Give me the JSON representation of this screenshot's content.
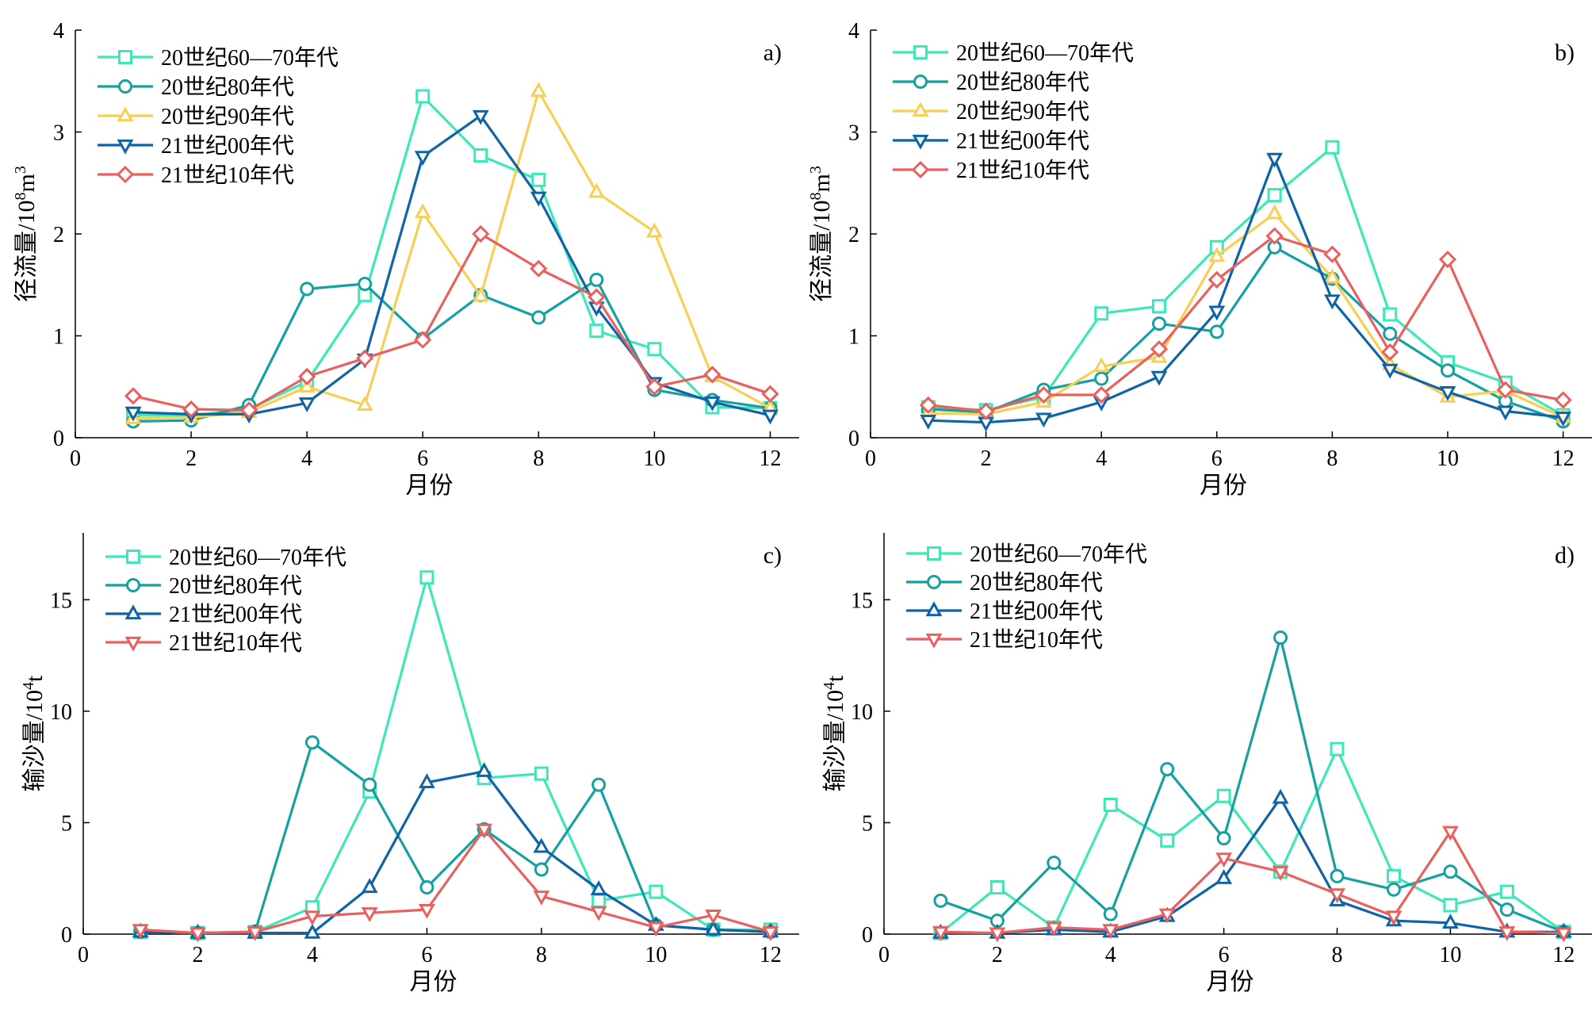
{
  "chart_data": [
    {
      "type": "line",
      "panel_label": "a)",
      "xlabel": "月份",
      "ylabel": "径流量/10⁸m³",
      "xlim": [
        0,
        12.5
      ],
      "ylim": [
        0,
        4
      ],
      "xticks": [
        "0",
        "2",
        "4",
        "6",
        "8",
        "10",
        "12"
      ],
      "yticks": [
        "0",
        "1",
        "2",
        "3",
        "4"
      ],
      "legend_position": "top-left",
      "x": [
        1,
        2,
        3,
        4,
        5,
        6,
        7,
        8,
        9,
        10,
        11,
        12
      ],
      "series": [
        {
          "name": "20世纪60—70年代",
          "marker": "square",
          "color": "#3de8b8",
          "values": [
            0.22,
            0.22,
            0.28,
            0.55,
            1.4,
            3.35,
            2.77,
            2.53,
            1.05,
            0.87,
            0.3,
            0.29
          ]
        },
        {
          "name": "20世纪80年代",
          "marker": "circle",
          "color": "#17a0a0",
          "values": [
            0.16,
            0.17,
            0.32,
            1.46,
            1.51,
            0.97,
            1.4,
            1.18,
            1.55,
            0.47,
            0.37,
            0.29
          ]
        },
        {
          "name": "20世纪90年代",
          "marker": "triangle-up",
          "color": "#f7cf55",
          "values": [
            0.19,
            0.2,
            0.25,
            0.5,
            0.32,
            2.21,
            1.39,
            3.4,
            2.41,
            2.02,
            0.6,
            0.29
          ]
        },
        {
          "name": "21世纪00年代",
          "marker": "triangle-down",
          "color": "#0f64a6",
          "values": [
            0.25,
            0.23,
            0.23,
            0.34,
            0.77,
            2.76,
            3.16,
            2.36,
            1.28,
            0.54,
            0.35,
            0.22
          ]
        },
        {
          "name": "21世纪10年代",
          "marker": "diamond",
          "color": "#e8615f",
          "values": [
            0.41,
            0.28,
            0.27,
            0.6,
            0.78,
            0.96,
            2.0,
            1.66,
            1.38,
            0.5,
            0.62,
            0.43
          ]
        }
      ]
    },
    {
      "type": "line",
      "panel_label": "b)",
      "xlabel": "月份",
      "ylabel": "径流量/10⁸m³",
      "xlim": [
        0,
        12.5
      ],
      "ylim": [
        0,
        4
      ],
      "xticks": [
        "0",
        "2",
        "4",
        "6",
        "8",
        "10",
        "12"
      ],
      "yticks": [
        "0",
        "1",
        "2",
        "3",
        "4"
      ],
      "legend_position": "top-left",
      "x": [
        1,
        2,
        3,
        4,
        5,
        6,
        7,
        8,
        9,
        10,
        11,
        12
      ],
      "series": [
        {
          "name": "20世纪60—70年代",
          "marker": "square",
          "color": "#3de8b8",
          "values": [
            0.3,
            0.27,
            0.4,
            1.22,
            1.29,
            1.87,
            2.38,
            2.85,
            1.21,
            0.74,
            0.54,
            0.22
          ]
        },
        {
          "name": "20世纪80年代",
          "marker": "circle",
          "color": "#17a0a0",
          "values": [
            0.28,
            0.25,
            0.47,
            0.58,
            1.12,
            1.04,
            1.87,
            1.56,
            1.02,
            0.66,
            0.36,
            0.16
          ]
        },
        {
          "name": "20世纪90年代",
          "marker": "triangle-up",
          "color": "#f7cf55",
          "values": [
            0.24,
            0.23,
            0.35,
            0.7,
            0.79,
            1.78,
            2.2,
            1.57,
            0.72,
            0.4,
            0.46,
            0.2
          ]
        },
        {
          "name": "21世纪00年代",
          "marker": "triangle-down",
          "color": "#0f64a6",
          "values": [
            0.17,
            0.15,
            0.19,
            0.35,
            0.6,
            1.24,
            2.74,
            1.35,
            0.67,
            0.45,
            0.26,
            0.2
          ]
        },
        {
          "name": "21世纪10年代",
          "marker": "diamond",
          "color": "#e8615f",
          "values": [
            0.32,
            0.26,
            0.42,
            0.42,
            0.87,
            1.55,
            1.98,
            1.8,
            0.84,
            1.75,
            0.47,
            0.37
          ]
        }
      ]
    },
    {
      "type": "line",
      "panel_label": "c)",
      "xlabel": "月份",
      "ylabel": "输沙量/10⁴t",
      "xlim": [
        0,
        12.5
      ],
      "ylim": [
        0,
        18
      ],
      "xticks": [
        "0",
        "2",
        "4",
        "6",
        "8",
        "10",
        "12"
      ],
      "yticks": [
        "0",
        "5",
        "10",
        "15"
      ],
      "legend_position": "top-left",
      "x": [
        1,
        2,
        3,
        4,
        5,
        6,
        7,
        8,
        9,
        10,
        11,
        12
      ],
      "series": [
        {
          "name": "20世纪60—70年代",
          "marker": "square",
          "color": "#3de8b8",
          "values": [
            0.1,
            0.05,
            0.1,
            1.2,
            6.4,
            16.0,
            7.0,
            7.2,
            1.5,
            1.9,
            0.2,
            0.2
          ]
        },
        {
          "name": "20世纪80年代",
          "marker": "circle",
          "color": "#17a0a0",
          "values": [
            0.1,
            0.05,
            0.1,
            8.6,
            6.7,
            2.1,
            4.7,
            2.9,
            6.7,
            0.4,
            0.2,
            0.1
          ]
        },
        {
          "name": "21世纪00年代",
          "marker": "triangle-up",
          "color": "#0f64a6",
          "values": [
            0.1,
            0.05,
            0.05,
            0.05,
            2.1,
            6.8,
            7.3,
            3.9,
            2.0,
            0.4,
            0.2,
            0.1
          ]
        },
        {
          "name": "21世纪10年代",
          "marker": "triangle-down",
          "color": "#e8615f",
          "values": [
            0.2,
            0.05,
            0.1,
            0.8,
            0.95,
            1.1,
            4.7,
            1.7,
            1.0,
            0.3,
            0.85,
            0.1
          ]
        }
      ]
    },
    {
      "type": "line",
      "panel_label": "d)",
      "xlabel": "月份",
      "ylabel": "输沙量/10⁴t",
      "xlim": [
        0,
        12.5
      ],
      "ylim": [
        0,
        18
      ],
      "xticks": [
        "0",
        "2",
        "4",
        "6",
        "8",
        "10",
        "12"
      ],
      "yticks": [
        "0",
        "5",
        "10",
        "15"
      ],
      "legend_position": "top-left",
      "x": [
        1,
        2,
        3,
        4,
        5,
        6,
        7,
        8,
        9,
        10,
        11,
        12
      ],
      "series": [
        {
          "name": "20世纪60—70年代",
          "marker": "square",
          "color": "#3de8b8",
          "values": [
            0.05,
            2.1,
            0.3,
            5.8,
            4.2,
            6.2,
            2.8,
            8.3,
            2.6,
            1.3,
            1.9,
            0.1
          ]
        },
        {
          "name": "20世纪80年代",
          "marker": "circle",
          "color": "#17a0a0",
          "values": [
            1.5,
            0.6,
            3.2,
            0.9,
            7.4,
            4.3,
            13.3,
            2.6,
            2.0,
            2.8,
            1.1,
            0.1
          ]
        },
        {
          "name": "21世纪00年代",
          "marker": "triangle-up",
          "color": "#0f64a6",
          "values": [
            0.05,
            0.05,
            0.2,
            0.1,
            0.8,
            2.5,
            6.1,
            1.5,
            0.6,
            0.5,
            0.1,
            0.1
          ]
        },
        {
          "name": "21世纪10年代",
          "marker": "triangle-down",
          "color": "#e8615f",
          "values": [
            0.1,
            0.05,
            0.3,
            0.2,
            0.9,
            3.4,
            2.8,
            1.8,
            0.8,
            4.6,
            0.1,
            0.05
          ]
        }
      ]
    }
  ]
}
